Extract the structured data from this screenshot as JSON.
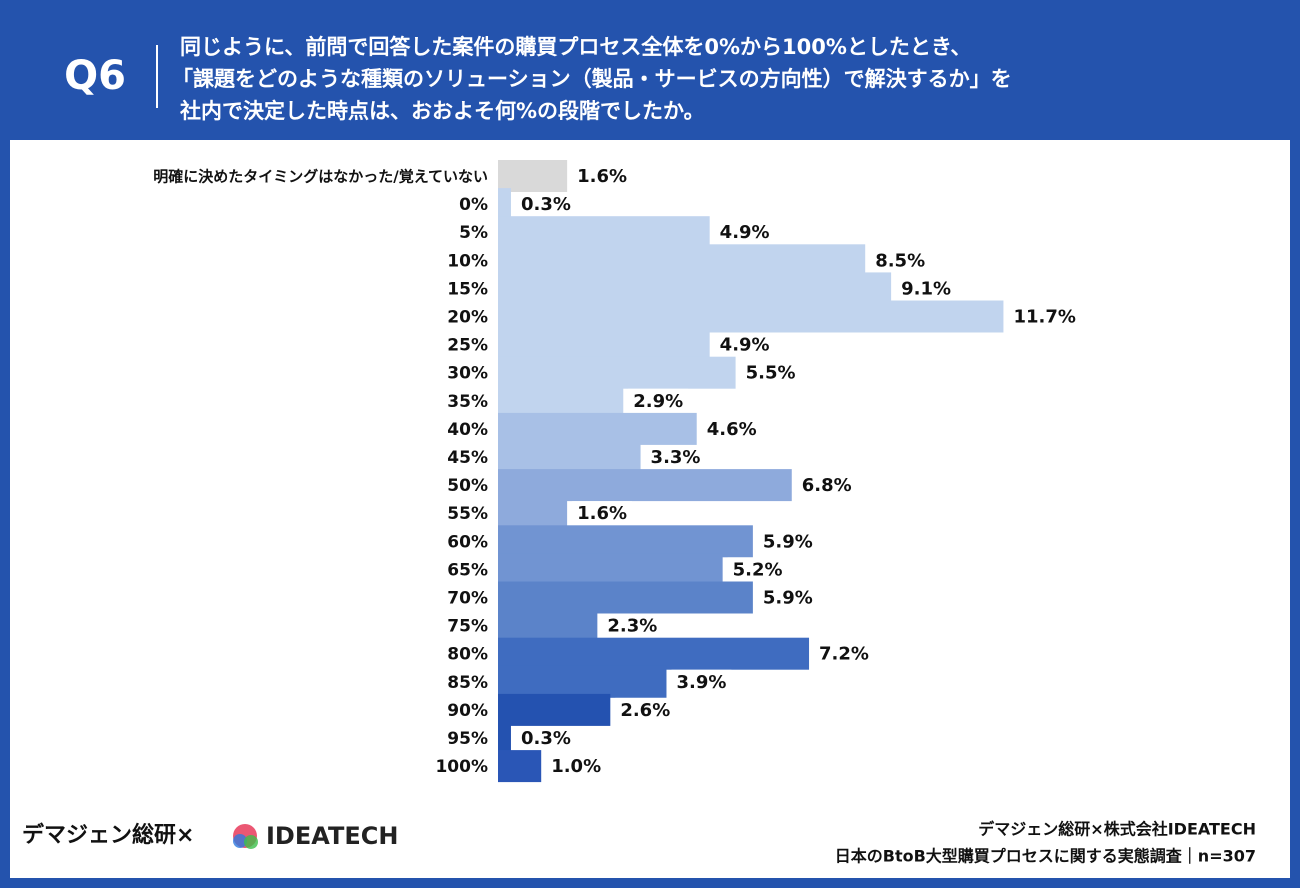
{
  "header": {
    "label": "Q6",
    "question": [
      "同じように、前問で回答した案件の購買プロセス全体を0%から100%としたとき、",
      "「課題をどのような種類のソリューション（製品・サービスの方向性）で解決するか」を",
      "社内で決定した時点は、おおよそ何%の段階でしたか。"
    ]
  },
  "footer": {
    "brand": "デマジェン総研×",
    "logo": "IDEATECH",
    "source": [
      "デマジェン総研×株式会社IDEATECH",
      "日本のBtoB大型購買プロセスに関する実態調査｜n=307"
    ]
  },
  "chart_data": {
    "type": "bar",
    "orientation": "horizontal",
    "categories": [
      "明確に決めたタイミングはなかった/覚えていない",
      "0%",
      "5%",
      "10%",
      "15%",
      "20%",
      "25%",
      "30%",
      "35%",
      "40%",
      "45%",
      "50%",
      "55%",
      "60%",
      "65%",
      "70%",
      "75%",
      "80%",
      "85%",
      "90%",
      "95%",
      "100%"
    ],
    "values": [
      1.6,
      0.3,
      4.9,
      8.5,
      9.1,
      11.7,
      4.9,
      5.5,
      2.9,
      4.6,
      3.3,
      6.8,
      1.6,
      5.9,
      5.2,
      5.9,
      2.3,
      7.2,
      3.9,
      2.6,
      0.3,
      1.0
    ],
    "value_labels": [
      "1.6%",
      "0.3%",
      "4.9%",
      "8.5%",
      "9.1%",
      "11.7%",
      "4.9%",
      "5.5%",
      "2.9%",
      "4.6%",
      "3.3%",
      "6.8%",
      "1.6%",
      "5.9%",
      "5.2%",
      "5.9%",
      "2.3%",
      "7.2%",
      "3.9%",
      "2.6%",
      "0.3%",
      "1.0%"
    ],
    "colors": [
      "#d9d9d9",
      "#c1d4ee",
      "#c1d4ee",
      "#c1d4ee",
      "#c1d4ee",
      "#c1d4ee",
      "#c1d4ee",
      "#c1d4ee",
      "#c1d4ee",
      "#a8c0e6",
      "#a8c0e6",
      "#8eaadc",
      "#8eaadc",
      "#7194d2",
      "#7194d2",
      "#5b83c9",
      "#5b83c9",
      "#3f6cc0",
      "#3f6cc0",
      "#2452b0",
      "#2452b0",
      "#2a56b6"
    ]
  }
}
